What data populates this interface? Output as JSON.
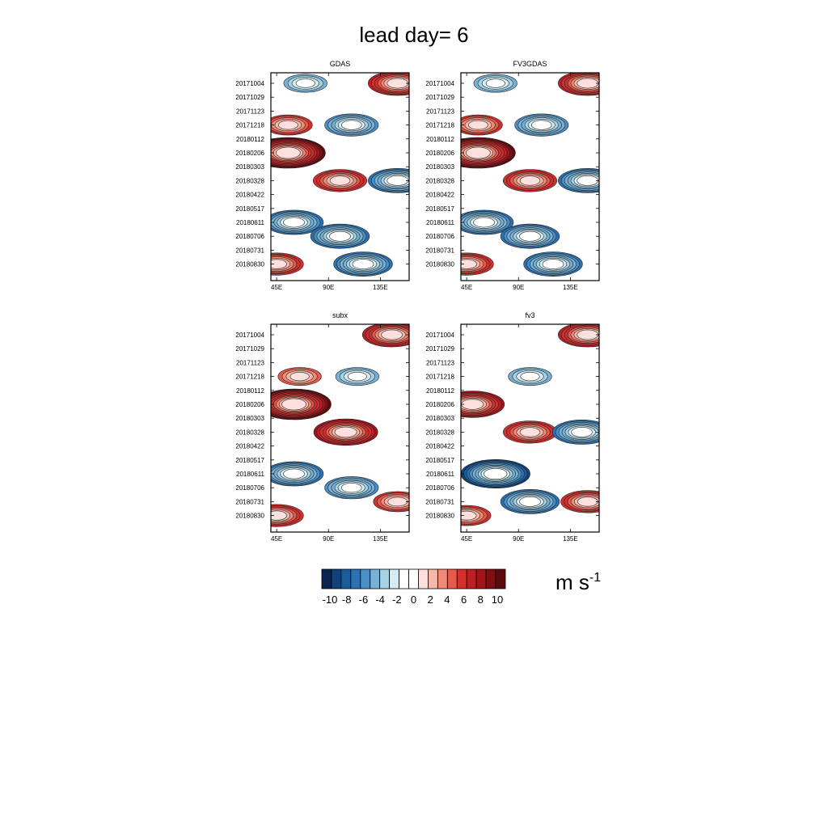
{
  "title": "lead day= 6",
  "chart_data": [
    {
      "type": "heatmap",
      "title": "GDAS",
      "x_ticks": [
        "45E",
        "90E",
        "135E"
      ],
      "x_tick_values": [
        45,
        90,
        135
      ],
      "xlim": [
        40,
        160
      ],
      "y_ticks": [
        "20171004",
        "20171029",
        "20171123",
        "20171218",
        "20180112",
        "20180206",
        "20180303",
        "20180328",
        "20180422",
        "20180517",
        "20180611",
        "20180706",
        "20180731",
        "20180830"
      ],
      "features": [
        {
          "lon": 150,
          "date": "20171004",
          "value": 7
        },
        {
          "lon": 70,
          "date": "20171004",
          "value": -4
        },
        {
          "lon": 55,
          "date": "20171218",
          "value": 5
        },
        {
          "lon": 110,
          "date": "20171218",
          "value": -6
        },
        {
          "lon": 55,
          "date": "20180206",
          "value": 10
        },
        {
          "lon": 100,
          "date": "20180328",
          "value": 6
        },
        {
          "lon": 150,
          "date": "20180328",
          "value": -7
        },
        {
          "lon": 60,
          "date": "20180611",
          "value": -7
        },
        {
          "lon": 100,
          "date": "20180706",
          "value": -7
        },
        {
          "lon": 120,
          "date": "20180830",
          "value": -7
        },
        {
          "lon": 45,
          "date": "20180830",
          "value": 6
        }
      ]
    },
    {
      "type": "heatmap",
      "title": "FV3GDAS",
      "x_ticks": [
        "45E",
        "90E",
        "135E"
      ],
      "x_tick_values": [
        45,
        90,
        135
      ],
      "xlim": [
        40,
        160
      ],
      "y_ticks": [
        "20171004",
        "20171029",
        "20171123",
        "20171218",
        "20180112",
        "20180206",
        "20180303",
        "20180328",
        "20180422",
        "20180517",
        "20180611",
        "20180706",
        "20180731",
        "20180830"
      ],
      "features": [
        {
          "lon": 150,
          "date": "20171004",
          "value": 7
        },
        {
          "lon": 70,
          "date": "20171004",
          "value": -4
        },
        {
          "lon": 55,
          "date": "20171218",
          "value": 5
        },
        {
          "lon": 110,
          "date": "20171218",
          "value": -6
        },
        {
          "lon": 55,
          "date": "20180206",
          "value": 10
        },
        {
          "lon": 100,
          "date": "20180328",
          "value": 6
        },
        {
          "lon": 150,
          "date": "20180328",
          "value": -7
        },
        {
          "lon": 60,
          "date": "20180611",
          "value": -7
        },
        {
          "lon": 100,
          "date": "20180706",
          "value": -7
        },
        {
          "lon": 120,
          "date": "20180830",
          "value": -7
        },
        {
          "lon": 45,
          "date": "20180830",
          "value": 6
        }
      ]
    },
    {
      "type": "heatmap",
      "title": "subx",
      "x_ticks": [
        "45E",
        "90E",
        "135E"
      ],
      "x_tick_values": [
        45,
        90,
        135
      ],
      "xlim": [
        40,
        160
      ],
      "y_ticks": [
        "20171004",
        "20171029",
        "20171123",
        "20171218",
        "20180112",
        "20180206",
        "20180303",
        "20180328",
        "20180422",
        "20180517",
        "20180611",
        "20180706",
        "20180731",
        "20180830"
      ],
      "features": [
        {
          "lon": 145,
          "date": "20171004",
          "value": 7
        },
        {
          "lon": 65,
          "date": "20171218",
          "value": 4
        },
        {
          "lon": 115,
          "date": "20171218",
          "value": -4
        },
        {
          "lon": 60,
          "date": "20180206",
          "value": 10
        },
        {
          "lon": 105,
          "date": "20180328",
          "value": 8
        },
        {
          "lon": 60,
          "date": "20180611",
          "value": -7
        },
        {
          "lon": 110,
          "date": "20180706",
          "value": -6
        },
        {
          "lon": 150,
          "date": "20180731",
          "value": 5
        },
        {
          "lon": 45,
          "date": "20180830",
          "value": 6
        }
      ]
    },
    {
      "type": "heatmap",
      "title": "fv3",
      "x_ticks": [
        "45E",
        "90E",
        "135E"
      ],
      "x_tick_values": [
        45,
        90,
        135
      ],
      "xlim": [
        40,
        160
      ],
      "y_ticks": [
        "20171004",
        "20171029",
        "20171123",
        "20171218",
        "20180112",
        "20180206",
        "20180303",
        "20180328",
        "20180422",
        "20180517",
        "20180611",
        "20180706",
        "20180731",
        "20180830"
      ],
      "features": [
        {
          "lon": 150,
          "date": "20171004",
          "value": 7
        },
        {
          "lon": 100,
          "date": "20171218",
          "value": -4
        },
        {
          "lon": 50,
          "date": "20180206",
          "value": 8
        },
        {
          "lon": 100,
          "date": "20180328",
          "value": 6
        },
        {
          "lon": 145,
          "date": "20180328",
          "value": -7
        },
        {
          "lon": 70,
          "date": "20180611",
          "value": -9
        },
        {
          "lon": 100,
          "date": "20180731",
          "value": -7
        },
        {
          "lon": 150,
          "date": "20180731",
          "value": 6
        },
        {
          "lon": 45,
          "date": "20180830",
          "value": 5
        }
      ]
    }
  ],
  "colorbar": {
    "labels": [
      "-10",
      "-8",
      "-6",
      "-4",
      "-2",
      "0",
      "2",
      "4",
      "6",
      "8",
      "10"
    ],
    "colors": [
      "#0a2350",
      "#10417a",
      "#1c5b9c",
      "#2c72b3",
      "#4a8fc6",
      "#78b1d6",
      "#a6d2e3",
      "#d5ecf3",
      "#ffffff",
      "#ffffff",
      "#fde0dd",
      "#f7b8aa",
      "#f18a76",
      "#e6594b",
      "#d32f2f",
      "#bd1f24",
      "#a3141b",
      "#800e13",
      "#5c0a0c"
    ]
  },
  "units": {
    "base": "m s",
    "exponent": "-1"
  }
}
